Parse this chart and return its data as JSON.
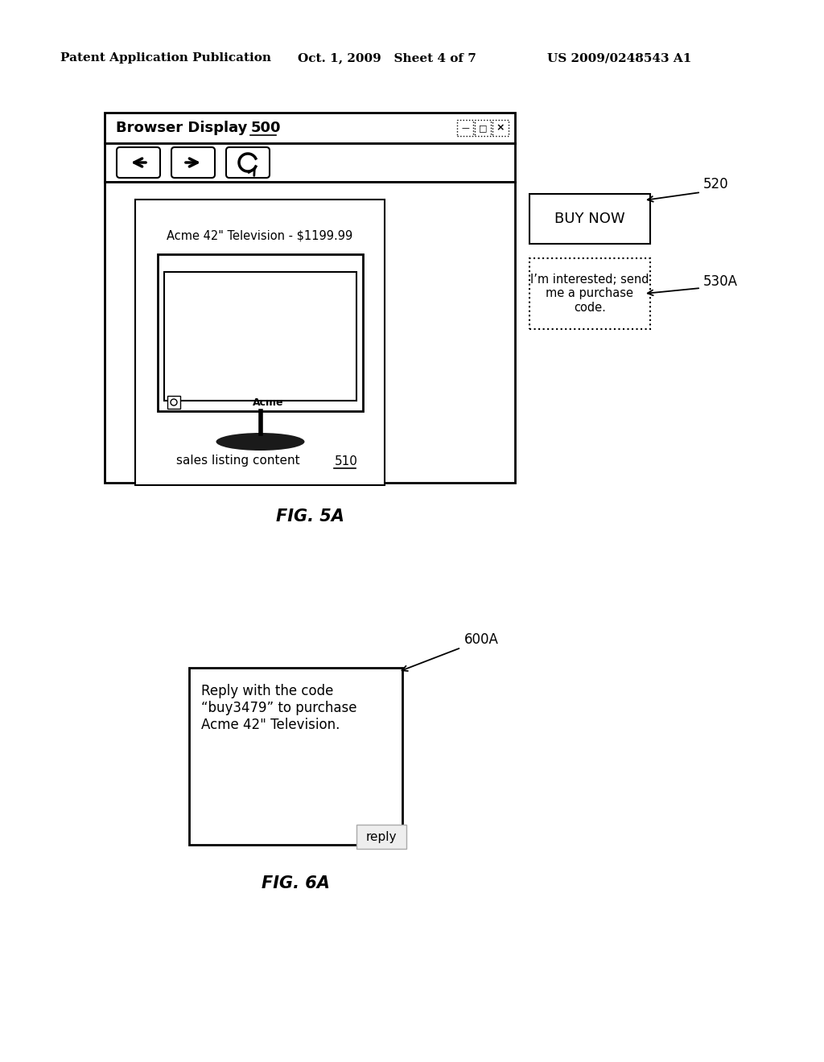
{
  "header_left": "Patent Application Publication",
  "header_mid": "Oct. 1, 2009   Sheet 4 of 7",
  "header_right": "US 2009/0248543 A1",
  "fig5a_label": "FIG. 5A",
  "fig6a_label": "FIG. 6A",
  "browser_title": "Browser Display ",
  "browser_num": "500",
  "product_text": "Acme 42\" Television - $1199.99",
  "acme_label": "Acme",
  "sales_text": "sales listing content ",
  "sales_num": "510",
  "buy_now_text": "BUY NOW",
  "interested_text": "I’m interested; send\nme a purchase\ncode.",
  "label_520": "520",
  "label_530a": "530A",
  "msg_text": "Reply with the code\n“buy3479” to purchase\nAcme 42\" Television.",
  "reply_text": "reply",
  "label_600a": "600A",
  "bg_color": "#ffffff",
  "border_color": "#000000",
  "text_color": "#000000"
}
